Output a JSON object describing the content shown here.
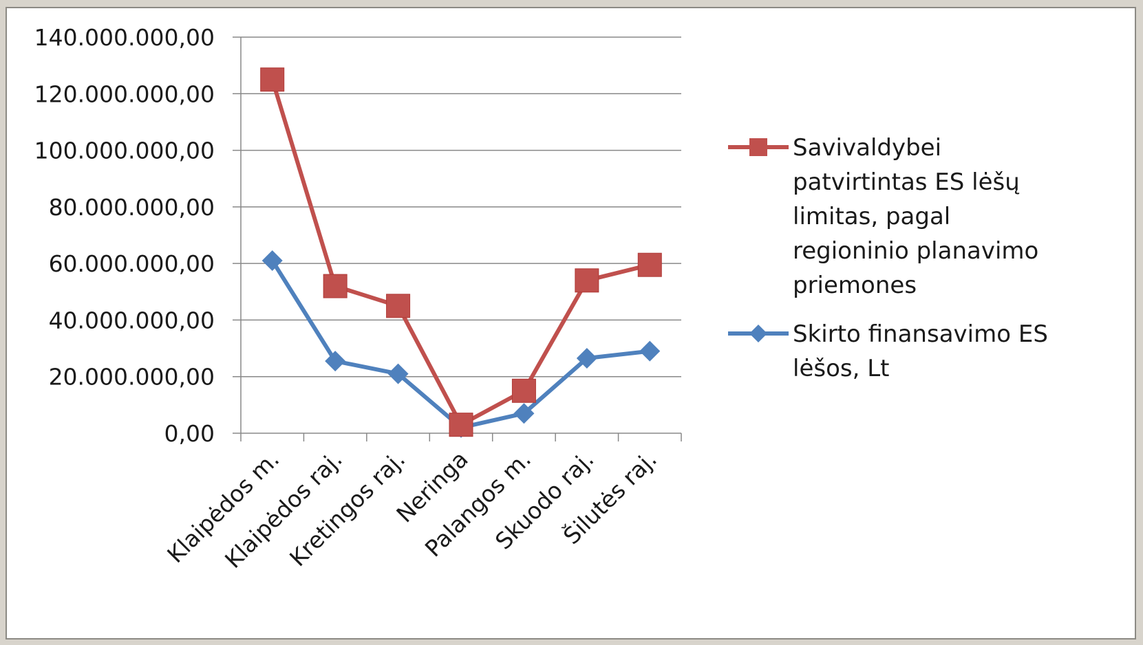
{
  "chart_data": {
    "type": "line",
    "categories": [
      "Klaipėdos m.",
      "Klaipėdos raj.",
      "Kretingos raj.",
      "Neringa",
      "Palangos m.",
      "Skuodo raj.",
      "Šilutės raj."
    ],
    "series": [
      {
        "name": "Savivaldybei patvirtintas ES lėšų limitas, pagal regioninio planavimo priemones",
        "color": "#c0504d",
        "marker": "square",
        "values": [
          125000000,
          52000000,
          45000000,
          3000000,
          15000000,
          54000000,
          59500000
        ]
      },
      {
        "name": "Skirto finansavimo ES lėšos, Lt",
        "color": "#4f81bd",
        "marker": "diamond",
        "values": [
          61000000,
          25500000,
          21000000,
          2000000,
          7000000,
          26500000,
          29000000
        ]
      }
    ],
    "ylim": [
      0,
      140000000
    ],
    "y_ticks": [
      0,
      20000000,
      40000000,
      60000000,
      80000000,
      100000000,
      120000000,
      140000000
    ],
    "y_tick_labels": [
      "0,00",
      "20.000.000,00",
      "40.000.000,00",
      "60.000.000,00",
      "80.000.000,00",
      "100.000.000,00",
      "120.000.000,00",
      "140.000.000,00"
    ],
    "grid": true,
    "legend_position": "right"
  },
  "legend": {
    "series_0_lines": [
      "Savivaldybei",
      "patvirtintas ES lėšų",
      "limitas, pagal",
      "regioninio planavimo",
      "priemones"
    ],
    "series_1_lines": [
      "Skirto finansavimo ES",
      "lėšos, Lt"
    ]
  }
}
